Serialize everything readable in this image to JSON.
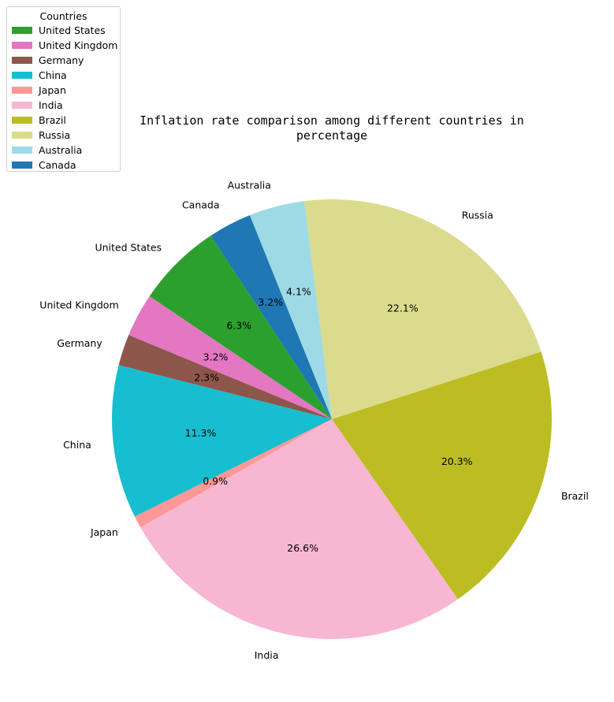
{
  "chart_data": {
    "type": "pie",
    "title_lines": [
      "Inflation rate comparison among different countries in",
      "percentage"
    ],
    "legend": {
      "title": "Countries",
      "placement": "top-left"
    },
    "slices": [
      {
        "name": "United States",
        "value": 6.3,
        "pct_label": "6.3%",
        "color": "#2ca02c"
      },
      {
        "name": "United Kingdom",
        "value": 3.2,
        "pct_label": "3.2%",
        "color": "#e377c2"
      },
      {
        "name": "Germany",
        "value": 2.3,
        "pct_label": "2.3%",
        "color": "#8c564b"
      },
      {
        "name": "China",
        "value": 11.3,
        "pct_label": "11.3%",
        "color": "#17becf"
      },
      {
        "name": "Japan",
        "value": 0.9,
        "pct_label": "0.9%",
        "color": "#ff9896"
      },
      {
        "name": "India",
        "value": 26.6,
        "pct_label": "26.6%",
        "color": "#f7b6d2"
      },
      {
        "name": "Brazil",
        "value": 20.3,
        "pct_label": "20.3%",
        "color": "#bcbd22"
      },
      {
        "name": "Russia",
        "value": 22.1,
        "pct_label": "22.1%",
        "color": "#dbdb8d"
      },
      {
        "name": "Australia",
        "value": 4.1,
        "pct_label": "4.1%",
        "color": "#9edae5"
      },
      {
        "name": "Canada",
        "value": 3.2,
        "pct_label": "3.2%",
        "color": "#1f77b4"
      }
    ]
  }
}
